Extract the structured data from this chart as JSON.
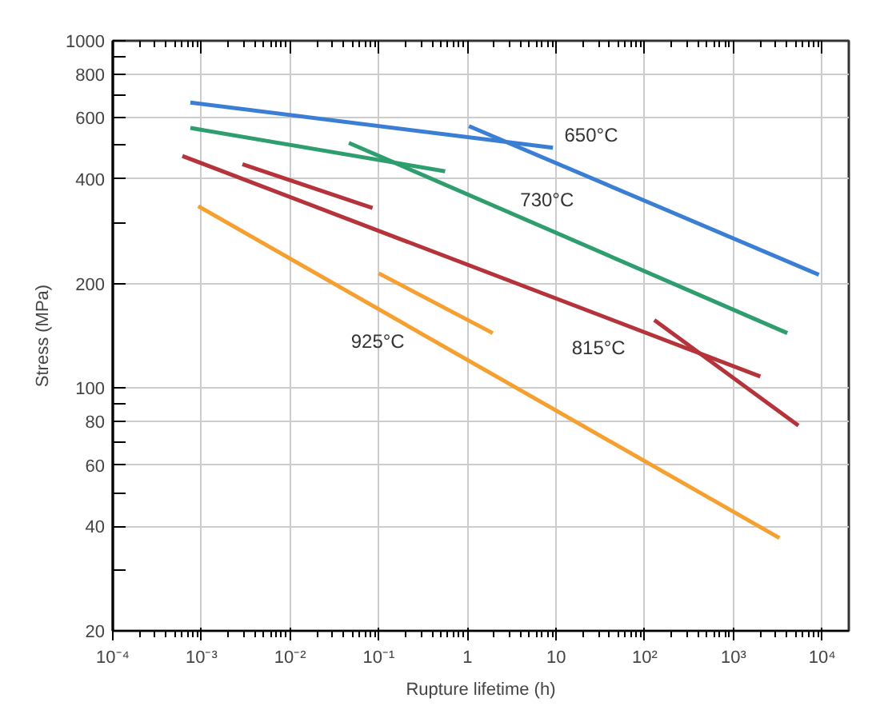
{
  "chart_data": {
    "type": "line",
    "xlabel": "Rupture lifetime (h)",
    "ylabel": "Stress (MPa)",
    "log": "xy",
    "grid": true,
    "marker": "none",
    "line_style": "solid",
    "xlim": [
      0.0001,
      20000
    ],
    "ylim": [
      20,
      1000
    ],
    "xticks": [
      {
        "value": 0.0001,
        "label": "10⁻⁴"
      },
      {
        "value": 0.001,
        "label": "10⁻³"
      },
      {
        "value": 0.01,
        "label": "10⁻²"
      },
      {
        "value": 0.1,
        "label": "10⁻¹"
      },
      1,
      10,
      {
        "value": 100,
        "label": "10²"
      },
      {
        "value": 1000,
        "label": "10³"
      },
      {
        "value": 10000,
        "label": "10⁴"
      }
    ],
    "yticks": [
      20,
      {
        "value": 30,
        "label": null
      },
      40,
      {
        "value": 50,
        "label": null
      },
      60,
      {
        "value": 70,
        "label": null
      },
      80,
      {
        "value": 90,
        "label": null
      },
      100,
      200,
      {
        "value": 300,
        "label": null
      },
      400,
      {
        "value": 500,
        "label": null
      },
      600,
      {
        "value": 700,
        "label": null
      },
      800,
      {
        "value": 900,
        "label": null
      },
      1000
    ],
    "series": [
      {
        "color": "#3a7fd5",
        "x": [
          0.00075,
          9.2
        ],
        "values": [
          664,
          492
        ]
      },
      {
        "color": "#3a7fd5",
        "x": [
          1.04,
          9200
        ],
        "values": [
          568,
          212
        ]
      },
      {
        "color": "#2e9e6e",
        "x": [
          0.00075,
          0.56
        ],
        "values": [
          561,
          421
        ]
      },
      {
        "color": "#2e9e6e",
        "x": [
          0.046,
          4050
        ],
        "values": [
          508,
          144
        ]
      },
      {
        "color": "#b5333b",
        "x": [
          0.00061,
          2010
        ],
        "values": [
          466,
          108
        ]
      },
      {
        "color": "#b5333b",
        "x": [
          0.0029,
          0.085
        ],
        "values": [
          441,
          330
        ]
      },
      {
        "color": "#b5333b",
        "x": [
          128,
          5400
        ],
        "values": [
          157,
          78
        ]
      },
      {
        "color": "#f5a030",
        "x": [
          0.00092,
          3300
        ],
        "values": [
          334,
          37
        ]
      },
      {
        "color": "#f5a030",
        "x": [
          0.1,
          1.93
        ],
        "values": [
          214,
          144
        ]
      }
    ],
    "annotations": [
      "650°C",
      "730°C",
      "925°C",
      "815°C"
    ]
  }
}
